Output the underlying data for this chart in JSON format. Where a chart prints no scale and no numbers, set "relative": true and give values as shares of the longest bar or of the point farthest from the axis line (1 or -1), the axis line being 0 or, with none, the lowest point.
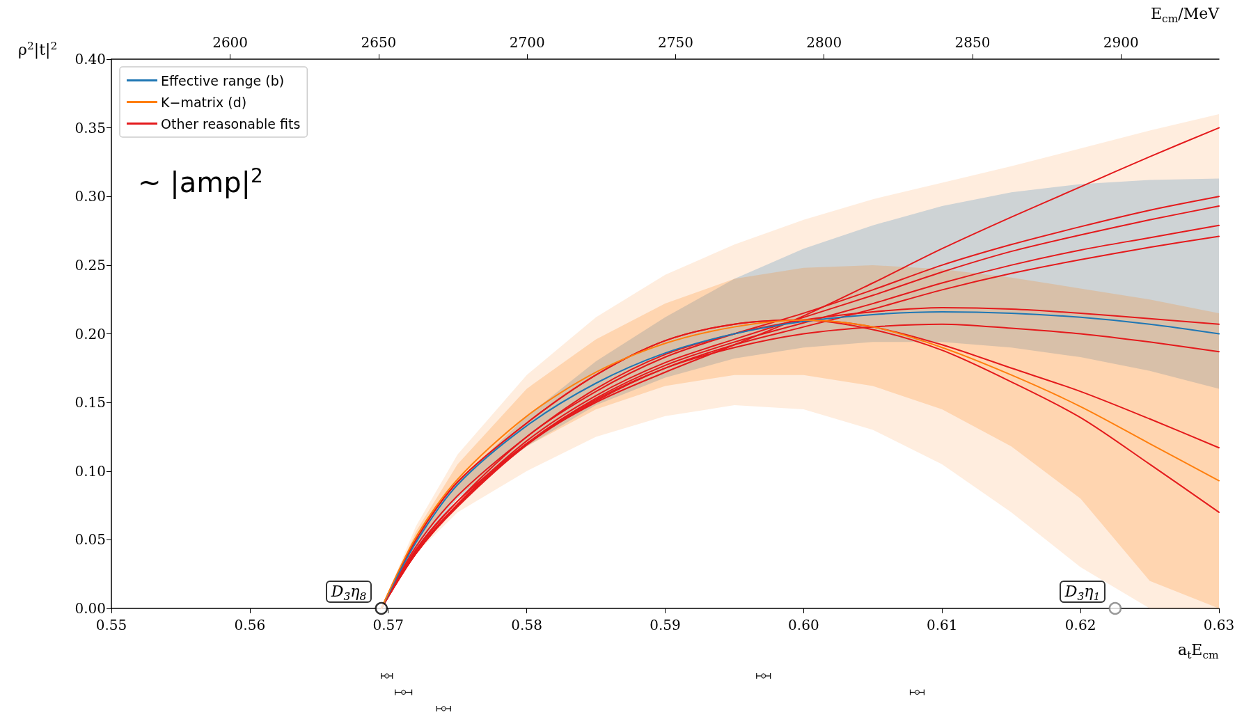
{
  "chart_data": [
    {
      "type": "line",
      "ylabel": "ρ$^{2}$|t|$^{2}$",
      "xlabel": "a$_{t}$E$_{cm}$",
      "x2label": "E$_{cm}$/MeV",
      "x": [
        0.5695,
        0.572,
        0.575,
        0.58,
        0.585,
        0.59,
        0.595,
        0.6,
        0.605,
        0.61,
        0.615,
        0.62,
        0.625,
        0.63
      ],
      "xlim": [
        0.55,
        0.63
      ],
      "xticks": [
        0.55,
        0.56,
        0.57,
        0.58,
        0.59,
        {
          "value": 0.6,
          "label": "0.60"
        },
        0.61,
        0.62,
        0.63
      ],
      "x2lim": [
        2560,
        2933
      ],
      "x2ticks": [
        2600,
        2650,
        2700,
        2750,
        2800,
        2850,
        2900
      ],
      "ylim": [
        0,
        0.4
      ],
      "yticks": [
        {
          "value": 0,
          "label": "0.00"
        },
        0.05,
        {
          "value": 0.1,
          "label": "0.10"
        },
        0.15,
        {
          "value": 0.2,
          "label": "0.20"
        },
        0.25,
        {
          "value": 0.3,
          "label": "0.30"
        },
        0.35,
        {
          "value": 0.4,
          "label": "0.40"
        }
      ],
      "grid": false,
      "legend": "top left",
      "line_style": "solid",
      "series": [
        {
          "color": "#fdae6b",
          "values": [
            null,
            null,
            null,
            null,
            null,
            null,
            null,
            null,
            null,
            null,
            null,
            null,
            null,
            null
          ],
          "lower": [
            0,
            0.04,
            0.07,
            0.1,
            0.125,
            0.14,
            0.148,
            0.145,
            0.13,
            0.105,
            0.07,
            0.03,
            0,
            0
          ],
          "upper": [
            0,
            0.06,
            0.112,
            0.17,
            0.212,
            0.243,
            0.265,
            0.283,
            0.298,
            0.31,
            0.322,
            0.335,
            0.348,
            0.36
          ]
        },
        {
          "name": "Effective range (b)",
          "color": "#1f77b4",
          "values": [
            0,
            0.048,
            0.09,
            0.133,
            0.164,
            0.186,
            0.2,
            0.209,
            0.214,
            0.216,
            0.215,
            0.212,
            0.207,
            0.2
          ],
          "lower": [
            0,
            0.044,
            0.08,
            0.118,
            0.148,
            0.168,
            0.182,
            0.19,
            0.194,
            0.194,
            0.19,
            0.183,
            0.173,
            0.16
          ],
          "upper": [
            0,
            0.05,
            0.092,
            0.14,
            0.18,
            0.212,
            0.24,
            0.262,
            0.279,
            0.293,
            0.303,
            0.309,
            0.312,
            0.313
          ]
        },
        {
          "name": "K−matrix (d)",
          "color": "#ff7f0e",
          "values": [
            0,
            0.052,
            0.094,
            0.14,
            0.172,
            0.193,
            0.205,
            0.21,
            0.205,
            0.19,
            0.17,
            0.147,
            0.12,
            0.093
          ],
          "lower": [
            0,
            0.046,
            0.082,
            0.118,
            0.145,
            0.162,
            0.17,
            0.17,
            0.162,
            0.145,
            0.118,
            0.08,
            0.02,
            0
          ],
          "upper": [
            0,
            0.056,
            0.105,
            0.16,
            0.196,
            0.222,
            0.24,
            0.248,
            0.25,
            0.247,
            0.241,
            0.233,
            0.225,
            0.215
          ]
        },
        {
          "name": "Other reasonable fits",
          "color": "#e41a1c",
          "values": [
            0,
            0.04,
            0.075,
            0.12,
            0.15,
            0.172,
            0.192,
            0.213,
            0.237,
            0.262,
            0.285,
            0.307,
            0.329,
            0.35
          ]
        },
        {
          "color": "#e41a1c",
          "values": [
            0,
            0.042,
            0.078,
            0.125,
            0.158,
            0.183,
            0.2,
            0.215,
            0.232,
            0.25,
            0.265,
            0.278,
            0.29,
            0.3
          ]
        },
        {
          "color": "#e41a1c",
          "values": [
            0,
            0.041,
            0.076,
            0.122,
            0.155,
            0.179,
            0.196,
            0.212,
            0.228,
            0.245,
            0.26,
            0.272,
            0.283,
            0.293
          ]
        },
        {
          "color": "#e41a1c",
          "values": [
            0,
            0.04,
            0.075,
            0.12,
            0.153,
            0.177,
            0.194,
            0.208,
            0.222,
            0.237,
            0.25,
            0.261,
            0.27,
            0.279
          ]
        },
        {
          "color": "#e41a1c",
          "values": [
            0,
            0.04,
            0.074,
            0.119,
            0.151,
            0.175,
            0.192,
            0.205,
            0.218,
            0.232,
            0.244,
            0.254,
            0.263,
            0.271
          ]
        },
        {
          "color": "#e41a1c",
          "values": [
            0,
            0.045,
            0.082,
            0.125,
            0.16,
            0.185,
            0.2,
            0.21,
            0.216,
            0.219,
            0.218,
            0.215,
            0.211,
            0.207
          ]
        },
        {
          "color": "#e41a1c",
          "values": [
            0,
            0.043,
            0.078,
            0.12,
            0.152,
            0.175,
            0.19,
            0.2,
            0.205,
            0.207,
            0.204,
            0.2,
            0.194,
            0.187
          ]
        },
        {
          "color": "#e41a1c",
          "values": [
            0,
            0.05,
            0.092,
            0.135,
            0.17,
            0.195,
            0.207,
            0.21,
            0.205,
            0.192,
            0.175,
            0.158,
            0.138,
            0.117
          ]
        },
        {
          "color": "#e41a1c",
          "values": [
            0,
            0.05,
            0.092,
            0.135,
            0.17,
            0.195,
            0.207,
            0.21,
            0.203,
            0.188,
            0.165,
            0.139,
            0.105,
            0.07
          ]
        },
        {
          "type": "scatter",
          "marker": "circle",
          "x": [
            0.5695,
            0.6225
          ],
          "values": [
            0,
            0
          ],
          "colors": [
            "#000000",
            "#808080"
          ]
        }
      ],
      "annotations": [
        "~ |amp|$^{2}$",
        {
          "text": "D$_{3̄}$η$_{8}$",
          "x": 0.5695,
          "y": 0
        },
        {
          "text": "D$_{3̄}$η$_{1}$",
          "x": 0.6225,
          "y": 0
        }
      ]
    },
    {
      "type": "scatter",
      "relative": true,
      "tick_labels": false,
      "marker": "circle",
      "xlim": [
        0.55,
        0.63
      ],
      "series": [
        {
          "color": "#000000",
          "x": [
            0.5699,
            0.5971,
            0.5711,
            0.6082,
            0.574
          ],
          "values": [
            1,
            1,
            0.5,
            0.5,
            0
          ],
          "xerrors": [
            0.0004,
            0.0005,
            0.0006,
            0.0005,
            0.0005
          ]
        }
      ]
    }
  ]
}
